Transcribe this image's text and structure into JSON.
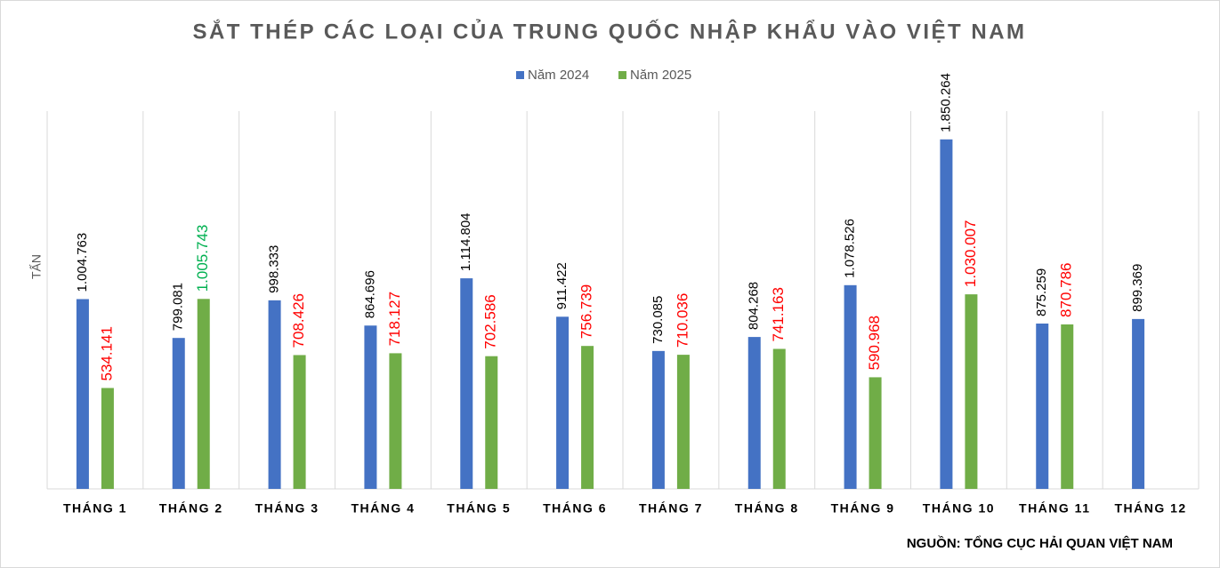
{
  "chart_data": {
    "type": "bar",
    "title": "SẮT THÉP CÁC LOẠI CỦA TRUNG QUỐC NHẬP KHẨU VÀO VIỆT NAM",
    "y_label": "TẤN",
    "source": "NGUỒN: TỔNG CỤC HẢI QUAN VIỆT NAM",
    "categories": [
      "THÁNG 1",
      "THÁNG 2",
      "THÁNG 3",
      "THÁNG 4",
      "THÁNG 5",
      "THÁNG 6",
      "THÁNG 7",
      "THÁNG 8",
      "THÁNG 9",
      "THÁNG 10",
      "THÁNG 11",
      "THÁNG 12"
    ],
    "series": [
      {
        "name": "Năm 2024",
        "color": "#4472c4",
        "values": [
          1004763,
          799081,
          998333,
          864696,
          1114804,
          911422,
          730085,
          804268,
          1078526,
          1850264,
          875259,
          899369
        ],
        "value_labels": [
          "1.004.763",
          "799.081",
          "998.333",
          "864.696",
          "1.114.804",
          "911.422",
          "730.085",
          "804.268",
          "1.078.526",
          "1.850.264",
          "875.259",
          "899.369"
        ],
        "label_colors": [
          "#000000",
          "#000000",
          "#000000",
          "#000000",
          "#000000",
          "#000000",
          "#000000",
          "#000000",
          "#000000",
          "#000000",
          "#000000",
          "#000000"
        ]
      },
      {
        "name": "Năm 2025",
        "color": "#70ad47",
        "values": [
          534141,
          1005743,
          708426,
          718127,
          702586,
          756739,
          710036,
          741163,
          590968,
          1030007,
          870786,
          null
        ],
        "value_labels": [
          "534.141",
          "1.005.743",
          "708.426",
          "718.127",
          "702.586",
          "756.739",
          "710.036",
          "741.163",
          "590.968",
          "1.030.007",
          "870.786",
          null
        ],
        "label_colors": [
          "#ff0000",
          "#00b050",
          "#ff0000",
          "#ff0000",
          "#ff0000",
          "#ff0000",
          "#ff0000",
          "#ff0000",
          "#ff0000",
          "#ff0000",
          "#ff0000",
          null
        ]
      }
    ],
    "ylim": [
      0,
      2000000
    ],
    "legend": "top"
  }
}
